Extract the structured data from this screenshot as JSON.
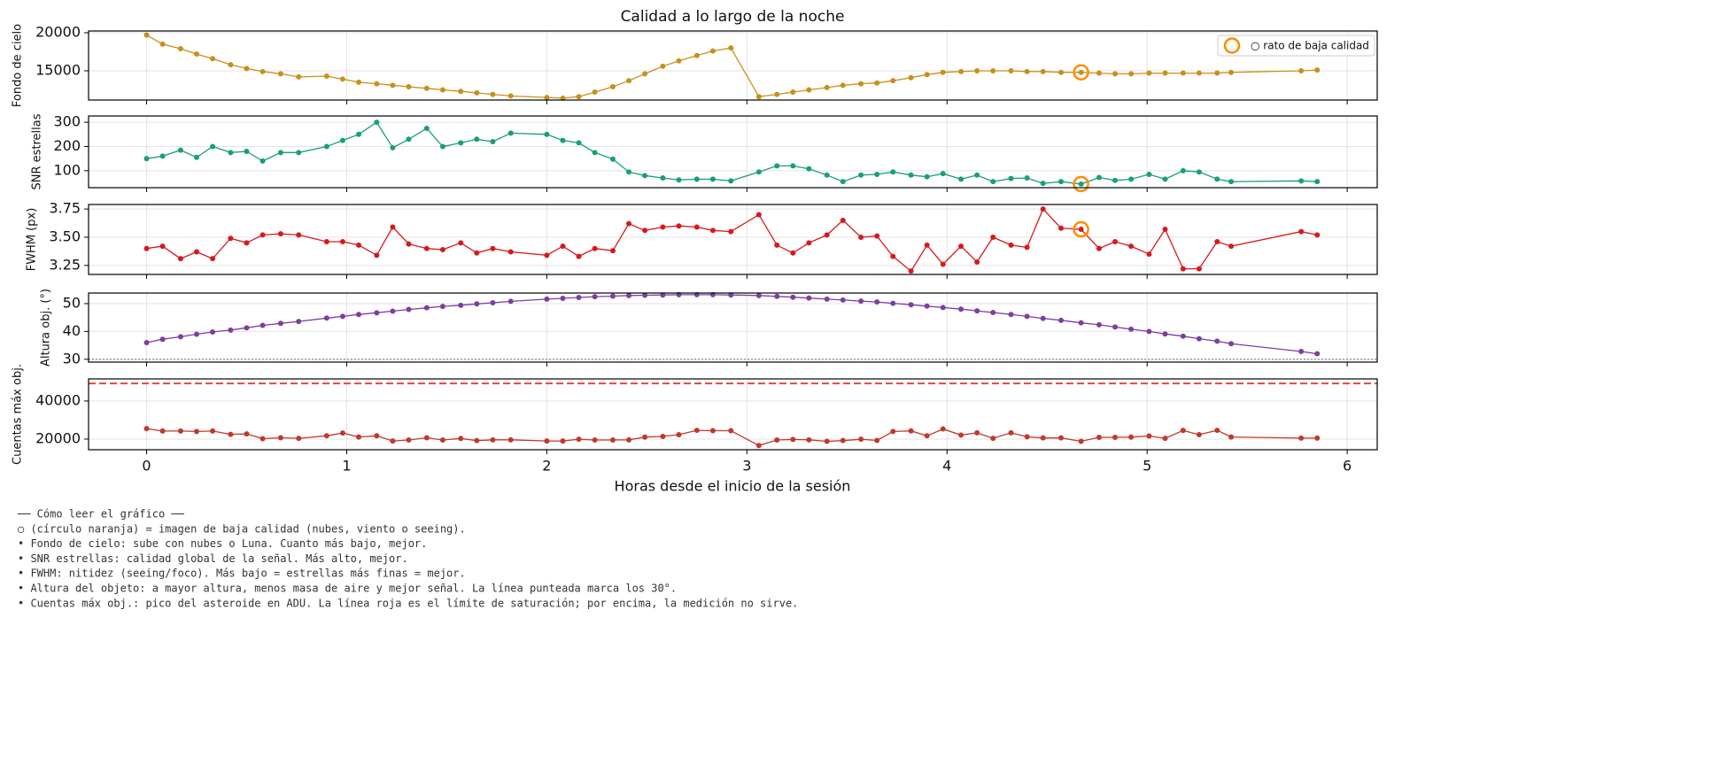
{
  "title": "Calidad a lo largo de la noche",
  "xlabel": "Horas desde el inicio de la sesión",
  "x": [
    0,
    0.08,
    0.17,
    0.25,
    0.33,
    0.42,
    0.5,
    0.58,
    0.67,
    0.76,
    0.9,
    0.98,
    1.06,
    1.15,
    1.23,
    1.31,
    1.4,
    1.48,
    1.57,
    1.65,
    1.73,
    1.82,
    2.0,
    2.08,
    2.16,
    2.24,
    2.33,
    2.41,
    2.49,
    2.58,
    2.66,
    2.75,
    2.83,
    2.92,
    3.06,
    3.15,
    3.23,
    3.31,
    3.4,
    3.48,
    3.57,
    3.65,
    3.73,
    3.82,
    3.9,
    3.98,
    4.07,
    4.15,
    4.23,
    4.32,
    4.4,
    4.48,
    4.57,
    4.67,
    4.76,
    4.84,
    4.92,
    5.01,
    5.09,
    5.18,
    5.26,
    5.35,
    5.42,
    5.77,
    5.85
  ],
  "xlim": [
    -0.29,
    6.15
  ],
  "xticks": [
    0,
    1,
    2,
    3,
    4,
    5,
    6
  ],
  "grid": true,
  "chart_data": [
    {
      "type": "line",
      "ylabel": "Fondo de cielo",
      "color": "#c8901a",
      "ylim": [
        11160,
        20230
      ],
      "yticks": [
        15000,
        20000
      ],
      "legend": "upper right",
      "values": [
        19700,
        18500,
        17900,
        17200,
        16600,
        15800,
        15300,
        14900,
        14600,
        14200,
        14300,
        13900,
        13500,
        13300,
        13100,
        12900,
        12700,
        12500,
        12300,
        12100,
        11900,
        11700,
        11500,
        11400,
        11600,
        12200,
        12900,
        13700,
        14600,
        15600,
        16300,
        17000,
        17600,
        18000,
        11600,
        11900,
        12200,
        12500,
        12800,
        13100,
        13300,
        13400,
        13700,
        14100,
        14500,
        14800,
        14900,
        15000,
        15000,
        15000,
        14900,
        14900,
        14800,
        14800,
        14700,
        14600,
        14600,
        14700,
        14700,
        14700,
        14700,
        14700,
        14800,
        15000,
        15100
      ],
      "flagged": {
        "name": "○ rato de baja calidad",
        "color": "#ff8c00",
        "x": [
          4.67
        ],
        "values": [
          14800
        ]
      }
    },
    {
      "type": "line",
      "ylabel": "SNR estrellas",
      "color": "#1a9e77",
      "ylim": [
        30,
        326
      ],
      "yticks": [
        100,
        200,
        300
      ],
      "values": [
        150,
        160,
        185,
        155,
        200,
        175,
        180,
        140,
        175,
        175,
        200,
        225,
        250,
        300,
        195,
        230,
        275,
        200,
        215,
        230,
        220,
        255,
        250,
        225,
        215,
        175,
        148,
        95,
        80,
        70,
        62,
        65,
        65,
        58,
        95,
        120,
        120,
        108,
        82,
        55,
        82,
        85,
        95,
        82,
        75,
        88,
        65,
        82,
        55,
        68,
        70,
        48,
        55,
        45,
        72,
        60,
        65,
        85,
        65,
        100,
        95,
        65,
        55,
        58,
        55
      ],
      "flagged": {
        "color": "#ff8c00",
        "x": [
          4.67
        ],
        "values": [
          45
        ]
      }
    },
    {
      "type": "line",
      "ylabel": "FWHM (px)",
      "color": "#d7191c",
      "ylim": [
        3.17,
        3.79
      ],
      "yticks": [
        3.25,
        {
          "value": 3.5,
          "label": "3.50"
        },
        3.75
      ],
      "values": [
        3.4,
        3.42,
        3.31,
        3.37,
        3.31,
        3.49,
        3.45,
        3.52,
        3.53,
        3.52,
        3.46,
        3.46,
        3.43,
        3.34,
        3.59,
        3.44,
        3.4,
        3.39,
        3.45,
        3.36,
        3.4,
        3.37,
        3.34,
        3.42,
        3.33,
        3.4,
        3.38,
        3.62,
        3.56,
        3.59,
        3.6,
        3.59,
        3.56,
        3.55,
        3.7,
        3.43,
        3.36,
        3.45,
        3.52,
        3.65,
        3.5,
        3.51,
        3.33,
        3.2,
        3.43,
        3.26,
        3.42,
        3.28,
        3.5,
        3.43,
        3.41,
        3.75,
        3.58,
        3.57,
        3.4,
        3.46,
        3.42,
        3.35,
        3.57,
        3.22,
        3.22,
        3.46,
        3.42,
        3.55,
        3.52
      ],
      "flagged": {
        "color": "#ff8c00",
        "x": [
          4.67
        ],
        "values": [
          3.57
        ]
      }
    },
    {
      "type": "line",
      "ylabel": "Altura obj. (°)",
      "color": "#7b3fa0",
      "ylim": [
        29.0,
        53.8
      ],
      "yticks": [
        30,
        40,
        50
      ],
      "values": [
        36,
        37.2,
        38.1,
        39,
        39.8,
        40.5,
        41.3,
        42.2,
        42.9,
        43.6,
        44.8,
        45.4,
        46.1,
        46.7,
        47.3,
        47.9,
        48.5,
        49,
        49.4,
        49.9,
        50.3,
        50.8,
        51.6,
        51.9,
        52.2,
        52.5,
        52.7,
        52.9,
        53,
        53.1,
        53.2,
        53.2,
        53.2,
        53.1,
        52.9,
        52.6,
        52.3,
        52,
        51.6,
        51.3,
        50.9,
        50.6,
        50.1,
        49.6,
        49.1,
        48.6,
        48,
        47.4,
        46.8,
        46.1,
        45.4,
        44.7,
        44,
        43.1,
        42.4,
        41.6,
        40.8,
        40,
        39.1,
        38.3,
        37.4,
        36.5,
        35.6,
        32.8,
        32
      ],
      "hline": {
        "value": 30,
        "color": "#888888",
        "style": "dotted"
      }
    },
    {
      "type": "line",
      "ylabel": "Cuentas máx obj.",
      "color": "#c0392b",
      "ylim": [
        14400,
        51600
      ],
      "yticks": [
        20000,
        40000
      ],
      "values": [
        25500,
        24200,
        24200,
        24000,
        24200,
        22500,
        22700,
        20200,
        20700,
        20400,
        21700,
        23200,
        21100,
        21700,
        19000,
        19500,
        20700,
        19500,
        20300,
        19200,
        19600,
        19600,
        19000,
        19000,
        19900,
        19500,
        19500,
        19600,
        21000,
        21400,
        22300,
        24600,
        24400,
        24400,
        16600,
        19500,
        19800,
        19600,
        18800,
        19200,
        19900,
        19300,
        24000,
        24300,
        21700,
        25300,
        22100,
        23300,
        20400,
        23300,
        21200,
        20600,
        20600,
        18800,
        20900,
        20900,
        21000,
        21600,
        20400,
        24500,
        22300,
        24600,
        21100,
        20500,
        20500
      ],
      "hline": {
        "value": 49200,
        "color": "#e0483e",
        "style": "dashed"
      }
    }
  ],
  "notes": [
    "── Cómo leer el gráfico ──",
    "○ (círculo naranja) = imagen de baja calidad (nubes, viento o seeing).",
    "• Fondo de cielo: sube con nubes o Luna. Cuanto más bajo, mejor.",
    "• SNR estrellas: calidad global de la señal. Más alto, mejor.",
    "• FWHM: nitidez (seeing/foco). Más bajo = estrellas más finas = mejor.",
    "• Altura del objeto: a mayor altura, menos masa de aire y mejor señal. La línea punteada marca los 30°.",
    "• Cuentas máx obj.: pico del asteroide en ADU. La línea roja es el límite de saturación; por encima, la medición no sirve."
  ]
}
